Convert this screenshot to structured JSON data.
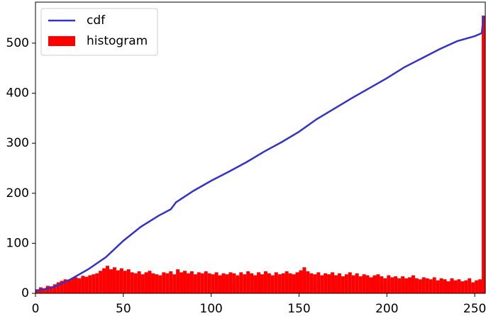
{
  "chart_data": {
    "type": "combo",
    "legend": "upper left",
    "xlim": [
      0,
      256
    ],
    "ylim": [
      0,
      582
    ],
    "xticks": [
      0,
      50,
      100,
      150,
      200,
      250
    ],
    "yticks": [
      0,
      100,
      200,
      300,
      400,
      500
    ],
    "series": [
      {
        "name": "cdf",
        "type": "line",
        "color": "#3333cc",
        "x": [
          0,
          10,
          20,
          30,
          40,
          50,
          60,
          70,
          77,
          80,
          90,
          100,
          110,
          120,
          130,
          140,
          150,
          160,
          170,
          180,
          190,
          200,
          210,
          220,
          230,
          240,
          250,
          254,
          255
        ],
        "values": [
          5,
          12,
          28,
          48,
          72,
          105,
          133,
          155,
          168,
          182,
          205,
          225,
          243,
          262,
          283,
          302,
          323,
          348,
          369,
          390,
          410,
          430,
          452,
          470,
          488,
          504,
          514,
          520,
          555
        ]
      },
      {
        "name": "histogram",
        "type": "histogram",
        "color": "#ff0000",
        "bins": [
          0,
          2,
          4,
          6,
          8,
          10,
          12,
          14,
          16,
          18,
          20,
          22,
          24,
          26,
          28,
          30,
          32,
          34,
          36,
          38,
          40,
          42,
          44,
          46,
          48,
          50,
          52,
          54,
          56,
          58,
          60,
          62,
          64,
          66,
          68,
          70,
          72,
          74,
          76,
          78,
          80,
          82,
          84,
          86,
          88,
          90,
          92,
          94,
          96,
          98,
          100,
          102,
          104,
          106,
          108,
          110,
          112,
          114,
          116,
          118,
          120,
          122,
          124,
          126,
          128,
          130,
          132,
          134,
          136,
          138,
          140,
          142,
          144,
          146,
          148,
          150,
          152,
          154,
          156,
          158,
          160,
          162,
          164,
          166,
          168,
          170,
          172,
          174,
          176,
          178,
          180,
          182,
          184,
          186,
          188,
          190,
          192,
          194,
          196,
          198,
          200,
          202,
          204,
          206,
          208,
          210,
          212,
          214,
          216,
          218,
          220,
          222,
          224,
          226,
          228,
          230,
          232,
          234,
          236,
          238,
          240,
          242,
          244,
          246,
          248,
          250,
          252,
          254,
          256
        ],
        "values": [
          8,
          12,
          10,
          15,
          14,
          18,
          22,
          25,
          28,
          26,
          30,
          32,
          30,
          35,
          33,
          36,
          38,
          40,
          45,
          50,
          55,
          48,
          52,
          46,
          50,
          45,
          48,
          42,
          40,
          44,
          38,
          42,
          45,
          40,
          38,
          36,
          42,
          40,
          44,
          38,
          48,
          42,
          45,
          40,
          44,
          38,
          42,
          40,
          44,
          40,
          38,
          42,
          36,
          40,
          38,
          42,
          40,
          36,
          42,
          38,
          44,
          40,
          36,
          42,
          38,
          44,
          40,
          36,
          42,
          38,
          40,
          44,
          40,
          38,
          42,
          46,
          52,
          44,
          40,
          38,
          42,
          36,
          40,
          38,
          42,
          36,
          40,
          34,
          38,
          42,
          36,
          40,
          34,
          38,
          36,
          32,
          36,
          38,
          34,
          30,
          36,
          32,
          34,
          30,
          34,
          30,
          32,
          36,
          30,
          28,
          32,
          30,
          28,
          32,
          26,
          30,
          28,
          24,
          30,
          26,
          28,
          24,
          26,
          30,
          22,
          26,
          28,
          555
        ]
      }
    ]
  }
}
